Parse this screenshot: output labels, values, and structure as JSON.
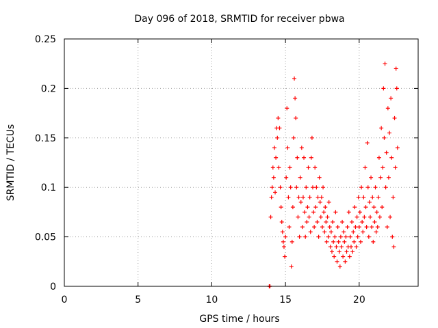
{
  "chart_data": {
    "type": "scatter",
    "title": "Day 096 of 2018, SRMTID for receiver pbwa",
    "xlabel": "GPS time / hours",
    "ylabel": "SRMTID / TECUs",
    "xlim": [
      0,
      24
    ],
    "ylim": [
      0,
      0.25
    ],
    "x_ticks": [
      0,
      5,
      10,
      15,
      20
    ],
    "y_ticks": [
      0,
      0.05,
      0.1,
      0.15,
      0.2,
      0.25
    ],
    "x_tick_labels": [
      "0",
      "5",
      "10",
      "15",
      "20"
    ],
    "y_tick_labels": [
      "0",
      "0.05",
      "0.1",
      "0.15",
      "0.2",
      "0.25"
    ],
    "grid": true,
    "marker": "+",
    "marker_color": "#ff0000",
    "series": [
      {
        "name": "SRMTID",
        "points": [
          [
            13.9,
            0.0
          ],
          [
            13.92,
            0.0
          ],
          [
            13.95,
            0.0
          ],
          [
            14.0,
            0.07
          ],
          [
            14.05,
            0.09
          ],
          [
            14.1,
            0.1
          ],
          [
            14.15,
            0.12
          ],
          [
            14.2,
            0.11
          ],
          [
            14.25,
            0.14
          ],
          [
            14.3,
            0.095
          ],
          [
            14.35,
            0.13
          ],
          [
            14.4,
            0.16
          ],
          [
            14.45,
            0.15
          ],
          [
            14.5,
            0.17
          ],
          [
            14.55,
            0.12
          ],
          [
            14.6,
            0.16
          ],
          [
            14.65,
            0.1
          ],
          [
            14.7,
            0.08
          ],
          [
            14.75,
            0.065
          ],
          [
            14.8,
            0.055
          ],
          [
            14.85,
            0.045
          ],
          [
            14.9,
            0.04
          ],
          [
            14.95,
            0.03
          ],
          [
            15.0,
            0.05
          ],
          [
            15.05,
            0.11
          ],
          [
            15.1,
            0.18
          ],
          [
            15.15,
            0.14
          ],
          [
            15.2,
            0.09
          ],
          [
            15.25,
            0.06
          ],
          [
            15.3,
            0.12
          ],
          [
            15.35,
            0.1
          ],
          [
            15.4,
            0.02
          ],
          [
            15.45,
            0.045
          ],
          [
            15.5,
            0.08
          ],
          [
            15.55,
            0.15
          ],
          [
            15.6,
            0.21
          ],
          [
            15.65,
            0.19
          ],
          [
            15.7,
            0.17
          ],
          [
            15.75,
            0.1
          ],
          [
            15.8,
            0.13
          ],
          [
            15.85,
            0.07
          ],
          [
            15.9,
            0.09
          ],
          [
            15.95,
            0.05
          ],
          [
            16.0,
            0.11
          ],
          [
            16.05,
            0.085
          ],
          [
            16.1,
            0.14
          ],
          [
            16.15,
            0.06
          ],
          [
            16.2,
            0.09
          ],
          [
            16.25,
            0.13
          ],
          [
            16.3,
            0.075
          ],
          [
            16.35,
            0.05
          ],
          [
            16.4,
            0.1
          ],
          [
            16.45,
            0.065
          ],
          [
            16.5,
            0.08
          ],
          [
            16.55,
            0.12
          ],
          [
            16.6,
            0.07
          ],
          [
            16.65,
            0.09
          ],
          [
            16.7,
            0.055
          ],
          [
            16.75,
            0.13
          ],
          [
            16.8,
            0.15
          ],
          [
            16.85,
            0.1
          ],
          [
            16.9,
            0.075
          ],
          [
            16.95,
            0.06
          ],
          [
            17.0,
            0.12
          ],
          [
            17.05,
            0.08
          ],
          [
            17.1,
            0.1
          ],
          [
            17.15,
            0.065
          ],
          [
            17.2,
            0.09
          ],
          [
            17.25,
            0.05
          ],
          [
            17.3,
            0.11
          ],
          [
            17.35,
            0.085
          ],
          [
            17.4,
            0.07
          ],
          [
            17.45,
            0.09
          ],
          [
            17.5,
            0.06
          ],
          [
            17.55,
            0.1
          ],
          [
            17.6,
            0.075
          ],
          [
            17.65,
            0.055
          ],
          [
            17.7,
            0.08
          ],
          [
            17.75,
            0.065
          ],
          [
            17.8,
            0.045
          ],
          [
            17.85,
            0.07
          ],
          [
            17.9,
            0.05
          ],
          [
            17.95,
            0.085
          ],
          [
            18.0,
            0.06
          ],
          [
            18.05,
            0.04
          ],
          [
            18.1,
            0.055
          ],
          [
            18.15,
            0.035
          ],
          [
            18.2,
            0.065
          ],
          [
            18.25,
            0.045
          ],
          [
            18.3,
            0.03
          ],
          [
            18.35,
            0.05
          ],
          [
            18.4,
            0.075
          ],
          [
            18.45,
            0.04
          ],
          [
            18.5,
            0.025
          ],
          [
            18.55,
            0.06
          ],
          [
            18.6,
            0.045
          ],
          [
            18.65,
            0.035
          ],
          [
            18.7,
            0.02
          ],
          [
            18.75,
            0.05
          ],
          [
            18.8,
            0.04
          ],
          [
            18.85,
            0.065
          ],
          [
            18.9,
            0.03
          ],
          [
            18.95,
            0.055
          ],
          [
            19.0,
            0.045
          ],
          [
            19.05,
            0.025
          ],
          [
            19.1,
            0.05
          ],
          [
            19.15,
            0.035
          ],
          [
            19.2,
            0.06
          ],
          [
            19.25,
            0.04
          ],
          [
            19.3,
            0.075
          ],
          [
            19.35,
            0.03
          ],
          [
            19.4,
            0.05
          ],
          [
            19.45,
            0.04
          ],
          [
            19.5,
            0.065
          ],
          [
            19.55,
            0.035
          ],
          [
            19.6,
            0.055
          ],
          [
            19.65,
            0.045
          ],
          [
            19.7,
            0.08
          ],
          [
            19.75,
            0.06
          ],
          [
            19.8,
            0.04
          ],
          [
            19.85,
            0.07
          ],
          [
            19.9,
            0.05
          ],
          [
            19.95,
            0.09
          ],
          [
            20.0,
            0.06
          ],
          [
            20.05,
            0.075
          ],
          [
            20.1,
            0.045
          ],
          [
            20.15,
            0.1
          ],
          [
            20.2,
            0.065
          ],
          [
            20.25,
            0.055
          ],
          [
            20.3,
            0.09
          ],
          [
            20.35,
            0.07
          ],
          [
            20.4,
            0.12
          ],
          [
            20.45,
            0.08
          ],
          [
            20.5,
            0.06
          ],
          [
            20.55,
            0.145
          ],
          [
            20.6,
            0.1
          ],
          [
            20.65,
            0.05
          ],
          [
            20.7,
            0.085
          ],
          [
            20.75,
            0.07
          ],
          [
            20.8,
            0.11
          ],
          [
            20.85,
            0.06
          ],
          [
            20.9,
            0.09
          ],
          [
            20.95,
            0.045
          ],
          [
            21.0,
            0.08
          ],
          [
            21.05,
            0.065
          ],
          [
            21.1,
            0.1
          ],
          [
            21.15,
            0.055
          ],
          [
            21.2,
            0.075
          ],
          [
            21.25,
            0.06
          ],
          [
            21.3,
            0.09
          ],
          [
            21.35,
            0.13
          ],
          [
            21.4,
            0.07
          ],
          [
            21.45,
            0.11
          ],
          [
            21.5,
            0.16
          ],
          [
            21.55,
            0.08
          ],
          [
            21.6,
            0.12
          ],
          [
            21.65,
            0.2
          ],
          [
            21.7,
            0.15
          ],
          [
            21.75,
            0.225
          ],
          [
            21.8,
            0.1
          ],
          [
            21.85,
            0.135
          ],
          [
            21.9,
            0.06
          ],
          [
            21.95,
            0.18
          ],
          [
            22.0,
            0.11
          ],
          [
            22.05,
            0.155
          ],
          [
            22.1,
            0.07
          ],
          [
            22.15,
            0.19
          ],
          [
            22.2,
            0.13
          ],
          [
            22.25,
            0.05
          ],
          [
            22.3,
            0.09
          ],
          [
            22.35,
            0.04
          ],
          [
            22.4,
            0.17
          ],
          [
            22.45,
            0.12
          ],
          [
            22.5,
            0.22
          ],
          [
            22.55,
            0.2
          ],
          [
            22.6,
            0.14
          ]
        ]
      }
    ]
  }
}
